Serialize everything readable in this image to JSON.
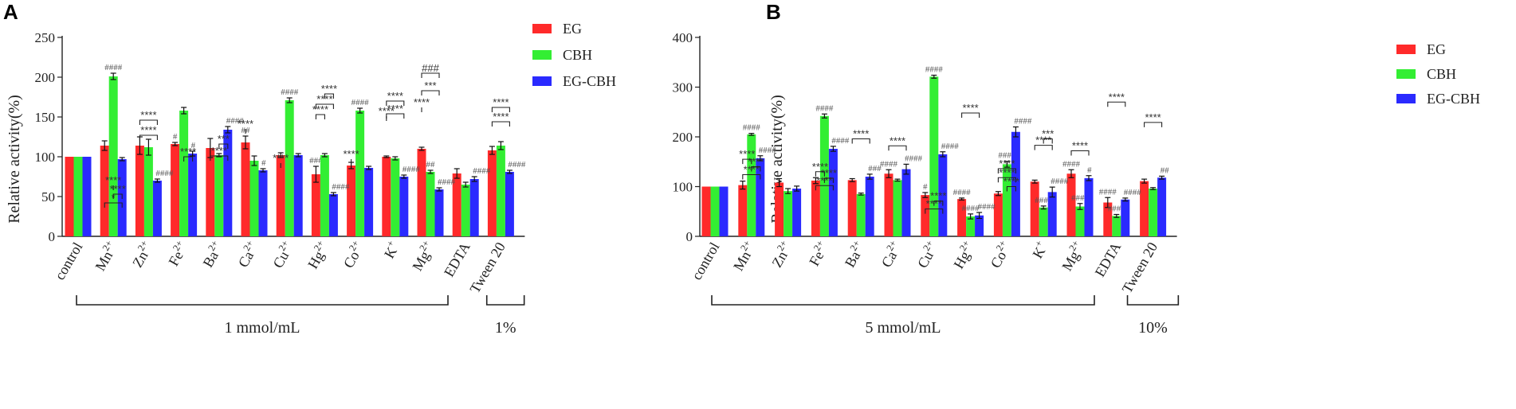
{
  "chart_data": [
    {
      "panel_label": "A",
      "type": "bar",
      "ylabel": "Relative activity(%)",
      "ylim": [
        0,
        250
      ],
      "yticks": [
        0,
        50,
        100,
        150,
        200,
        250
      ],
      "categories": [
        "control",
        "Mn",
        "Zn",
        "Fe",
        "Ba",
        "Ca",
        "Cu",
        "Hg",
        "Co",
        "K",
        "Mg",
        "EDTA",
        "Tween 20"
      ],
      "superscripts": [
        "",
        "2+",
        "2+",
        "2+",
        "2+",
        "2+",
        "2+",
        "2+",
        "2+",
        "+",
        "2+",
        "",
        ""
      ],
      "series": [
        {
          "name": "EG",
          "color": "#ff2a2a",
          "values": [
            100,
            114,
            114,
            116,
            111,
            118,
            102,
            78,
            89,
            100,
            110,
            79,
            108
          ],
          "errors": [
            0,
            6,
            11,
            2,
            12,
            8,
            3,
            10,
            4,
            1,
            2,
            6,
            5
          ],
          "marks": [
            "",
            "",
            "",
            "#",
            "",
            "##",
            "",
            "###",
            "",
            "",
            "",
            "",
            ""
          ]
        },
        {
          "name": "CBH",
          "color": "#33ee33",
          "values": [
            100,
            201,
            112,
            158,
            102,
            95,
            171,
            102,
            158,
            98,
            81,
            65,
            114
          ],
          "errors": [
            0,
            4,
            10,
            4,
            2,
            6,
            3,
            2,
            3,
            2,
            2,
            3,
            5
          ],
          "marks": [
            "",
            "####",
            "",
            "",
            "",
            "",
            "####",
            "",
            "####",
            "",
            "##",
            "",
            ""
          ]
        },
        {
          "name": "EG-CBH",
          "color": "#2a2aff",
          "values": [
            100,
            97,
            70,
            104,
            134,
            83,
            102,
            53,
            86,
            75,
            59,
            72,
            81
          ],
          "errors": [
            0,
            2,
            2,
            3,
            4,
            2,
            2,
            2,
            2,
            2,
            2,
            3,
            2
          ],
          "marks": [
            "",
            "",
            "####",
            "#",
            "####",
            "#",
            "",
            "####",
            "",
            "####",
            "####",
            "####",
            "####"
          ]
        }
      ],
      "significance": [
        {
          "label": "*"
        },
        {
          "label": "****"
        },
        {
          "label": "****"
        },
        {
          "label": "****"
        },
        {
          "label": "****"
        },
        {
          "label": "****"
        },
        {
          "label": "****"
        },
        {
          "label": "***"
        },
        {
          "label": "****"
        },
        {
          "label": "****"
        },
        {
          "label": "****"
        },
        {
          "label": "****"
        },
        {
          "label": "****"
        },
        {
          "label": "****"
        },
        {
          "label": "****"
        },
        {
          "label": "****"
        },
        {
          "label": "****"
        },
        {
          "label": "****"
        },
        {
          "label": "***"
        },
        {
          "label": "###"
        },
        {
          "label": "****"
        },
        {
          "label": "****"
        }
      ],
      "groups": [
        {
          "label": "1 mmol/mL"
        },
        {
          "label": "1%"
        }
      ],
      "legend_position": "top-right"
    },
    {
      "panel_label": "B",
      "type": "bar",
      "ylabel": "Relative activity(%)",
      "ylim": [
        0,
        400
      ],
      "yticks": [
        0,
        100,
        200,
        300,
        400
      ],
      "categories": [
        "control",
        "Mn",
        "Zn",
        "Fe",
        "Ba",
        "Ca",
        "Cu",
        "Hg",
        "Co",
        "K",
        "Mg",
        "EDTA",
        "Tween 20"
      ],
      "superscripts": [
        "",
        "2+",
        "2+",
        "2+",
        "2+",
        "2+",
        "2+",
        "2+",
        "2+",
        "+",
        "2+",
        "",
        ""
      ],
      "series": [
        {
          "name": "EG",
          "color": "#ff2a2a",
          "values": [
            100,
            103,
            108,
            112,
            113,
            126,
            83,
            75,
            86,
            110,
            126,
            68,
            111
          ],
          "errors": [
            0,
            8,
            8,
            6,
            3,
            8,
            5,
            2,
            4,
            3,
            8,
            10,
            4
          ],
          "marks": [
            "",
            "",
            "",
            "",
            "",
            "####",
            "#",
            "####",
            "",
            "",
            "####",
            "####",
            ""
          ]
        },
        {
          "name": "CBH",
          "color": "#33ee33",
          "values": [
            100,
            205,
            91,
            242,
            85,
            113,
            321,
            40,
            145,
            58,
            60,
            41,
            96
          ],
          "errors": [
            0,
            2,
            5,
            4,
            2,
            2,
            3,
            5,
            6,
            3,
            6,
            3,
            2
          ],
          "marks": [
            "",
            "####",
            "",
            "####",
            "",
            "",
            "####",
            "####",
            "####",
            "####",
            "####",
            "####",
            ""
          ]
        },
        {
          "name": "EG-CBH",
          "color": "#2a2aff",
          "values": [
            100,
            157,
            96,
            176,
            120,
            135,
            165,
            42,
            210,
            89,
            117,
            74,
            118
          ],
          "errors": [
            0,
            5,
            5,
            5,
            5,
            10,
            5,
            6,
            10,
            10,
            5,
            3,
            3
          ],
          "marks": [
            "",
            "####",
            "",
            "####",
            "###",
            "####",
            "####",
            "####",
            "####",
            "####",
            "#",
            "####",
            "##"
          ]
        }
      ],
      "significance": [
        {
          "label": "****"
        },
        {
          "label": "****"
        },
        {
          "label": "****"
        },
        {
          "label": "****"
        },
        {
          "label": "****"
        },
        {
          "label": "****"
        },
        {
          "label": "****"
        },
        {
          "label": "****"
        },
        {
          "label": "****"
        },
        {
          "label": "****"
        },
        {
          "label": "****"
        },
        {
          "label": "****"
        },
        {
          "label": "****"
        },
        {
          "label": "****"
        },
        {
          "label": "****"
        },
        {
          "label": "***"
        },
        {
          "label": "****"
        },
        {
          "label": "****"
        },
        {
          "label": "****"
        }
      ],
      "groups": [
        {
          "label": "5 mmol/mL"
        },
        {
          "label": "10%"
        }
      ],
      "legend_position": "top-right"
    }
  ]
}
